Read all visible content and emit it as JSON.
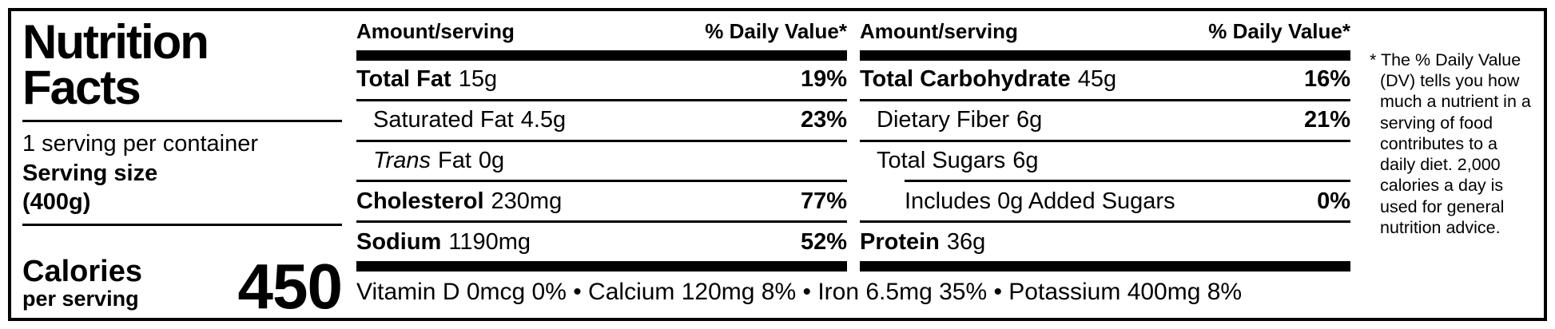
{
  "panel": {
    "title_line1": "Nutrition",
    "title_line2": "Facts",
    "servings_per_container": "1 serving per container",
    "serving_size_label": "Serving size",
    "serving_size_value": "(400g)",
    "calories_label": "Calories",
    "calories_sublabel": "per serving",
    "calories_value": "450"
  },
  "columns": [
    {
      "header": {
        "amount": "Amount/serving",
        "dv": "% Daily Value*"
      },
      "rows": [
        {
          "name": "Total Fat",
          "amount": "15g",
          "dv": "19%"
        },
        {
          "name": "Saturated Fat",
          "amount": "4.5g",
          "dv": "23%"
        },
        {
          "name_italic": "Trans",
          "name": "Fat",
          "amount": "0g",
          "dv": ""
        },
        {
          "name": "Cholesterol",
          "amount": "230mg",
          "dv": "77%"
        },
        {
          "name": "Sodium",
          "amount": "1190mg",
          "dv": "52%"
        }
      ]
    },
    {
      "header": {
        "amount": "Amount/serving",
        "dv": "% Daily Value*"
      },
      "rows": [
        {
          "name": "Total Carbohydrate",
          "amount": "45g",
          "dv": "16%"
        },
        {
          "name": "Dietary Fiber",
          "amount": "6g",
          "dv": "21%"
        },
        {
          "name": "Total Sugars",
          "amount": "6g",
          "dv": ""
        },
        {
          "name": "Includes 0g Added Sugars",
          "amount": "",
          "dv": "0%"
        },
        {
          "name": "Protein",
          "amount": "36g",
          "dv": ""
        }
      ]
    }
  ],
  "micronutrients": "Vitamin D 0mcg 0% • Calcium 120mg 8% • Iron 6.5mg 35% • Potassium 400mg 8%",
  "footnote": "* The % Daily Value (DV) tells you how much a nutrient in a serving of food contributes to a daily diet. 2,000 calories a day is used for general nutrition advice.",
  "colors": {
    "ink": "#000000",
    "background": "#ffffff"
  }
}
